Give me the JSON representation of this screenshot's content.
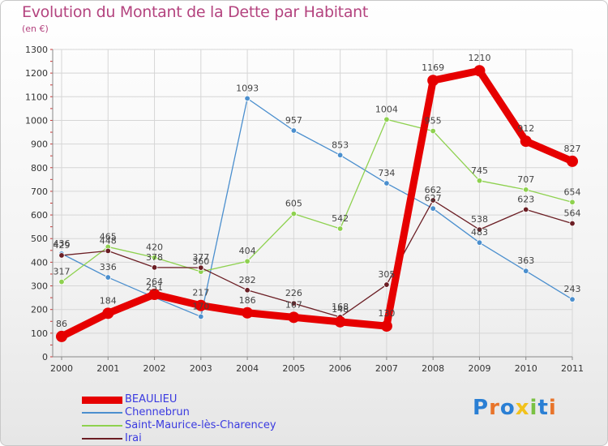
{
  "title": "Evolution du Montant de la Dette par Habitant",
  "unit": "(en €)",
  "logo": {
    "text": "Proxiti",
    "letter_colors": [
      "#2a7fd4",
      "#e8742a",
      "#2a7fd4",
      "#f2c21c",
      "#7ac143",
      "#2a7fd4",
      "#e8742a"
    ]
  },
  "chart_data": {
    "type": "line",
    "x": [
      "2000",
      "2001",
      "2002",
      "2003",
      "2004",
      "2005",
      "2006",
      "2007",
      "2008",
      "2009",
      "2010",
      "2011"
    ],
    "ylim": [
      0,
      1300
    ],
    "yticks": [
      0,
      100,
      200,
      300,
      400,
      500,
      600,
      700,
      800,
      900,
      1000,
      1100,
      1200,
      1300
    ],
    "grid": true,
    "legend_position": "bottom-left",
    "series": [
      {
        "name": "BEAULIEU",
        "color": "#e60000",
        "values": [
          86,
          184,
          264,
          217,
          186,
          167,
          148,
          130,
          1169,
          1210,
          912,
          827
        ],
        "labels": [
          "86",
          "184",
          "264",
          "217",
          "186",
          "167",
          "148",
          "130",
          "1169",
          "1210",
          "912",
          "827"
        ]
      },
      {
        "name": "Chennebrun",
        "color": "#4b8fce",
        "values": [
          436,
          336,
          251,
          170,
          1093,
          957,
          853,
          734,
          627,
          483,
          363,
          243
        ],
        "labels": [
          "436",
          "336",
          "251",
          "170",
          "1093",
          "957",
          "853",
          "734",
          "627",
          "483",
          "363",
          "243"
        ]
      },
      {
        "name": "Saint-Maurice-lès-Charencey",
        "color": "#8ed14f",
        "values": [
          317,
          465,
          420,
          360,
          404,
          605,
          542,
          1004,
          955,
          745,
          707,
          654
        ],
        "labels": [
          "317",
          "465",
          "420",
          "360",
          "404",
          "605",
          "542",
          "1004",
          "955",
          "745",
          "707",
          "654"
        ]
      },
      {
        "name": "Irai",
        "color": "#6b1e24",
        "values": [
          429,
          448,
          378,
          377,
          282,
          226,
          168,
          305,
          662,
          538,
          623,
          564
        ],
        "labels": [
          "429",
          "448",
          "378",
          "377",
          "282",
          "226",
          "168",
          "305",
          "662",
          "538",
          "623",
          "564"
        ]
      }
    ]
  }
}
